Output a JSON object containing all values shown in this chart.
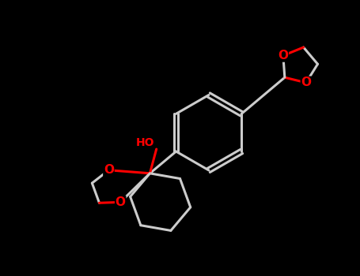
{
  "background_color": "#000000",
  "bond_color": "#cccccc",
  "oxygen_color": "#ff0000",
  "line_width": 2.2,
  "fig_width": 4.55,
  "fig_height": 3.5,
  "dpi": 100,
  "xlim": [
    0,
    10
  ],
  "ylim": [
    0,
    7.7
  ]
}
